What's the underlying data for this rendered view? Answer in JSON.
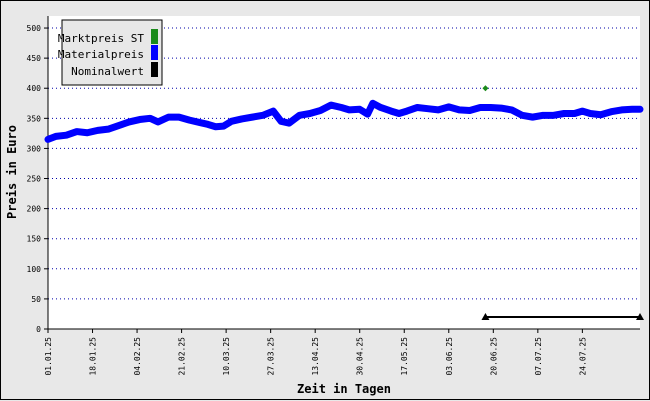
{
  "chart_data": {
    "type": "line",
    "xlabel": "Zeit in Tagen",
    "ylabel": "Preis in Euro",
    "ylim": [
      0,
      520
    ],
    "y_ticks": [
      0,
      50,
      100,
      150,
      200,
      250,
      300,
      350,
      400,
      450,
      500
    ],
    "x_range": [
      "01.01.25",
      "15.08.25"
    ],
    "x_ticks": [
      "01.01.25",
      "18.01.25",
      "04.02.25",
      "21.02.25",
      "10.03.25",
      "27.03.25",
      "13.04.25",
      "30.04.25",
      "17.05.25",
      "03.06.25",
      "20.06.25",
      "07.07.25",
      "24.07.25"
    ],
    "grid": "horizontal dotted",
    "legend_position": "top-left",
    "colors": {
      "Marktpreis ST": "#1a8a1a",
      "Materialpreis": "#0000ff",
      "Nominalwert": "#000000"
    },
    "series": [
      {
        "name": "Materialpreis",
        "type": "line",
        "x": [
          "01.01.25",
          "04.01.25",
          "08.01.25",
          "12.01.25",
          "16.01.25",
          "20.01.25",
          "24.01.25",
          "28.01.25",
          "01.02.25",
          "05.02.25",
          "09.02.25",
          "12.02.25",
          "16.02.25",
          "20.02.25",
          "24.02.25",
          "28.02.25",
          "03.03.25",
          "06.03.25",
          "09.03.25",
          "12.03.25",
          "16.03.25",
          "20.03.25",
          "24.03.25",
          "28.03.25",
          "31.03.25",
          "03.04.25",
          "07.04.25",
          "11.04.25",
          "15.04.25",
          "19.04.25",
          "23.04.25",
          "26.04.25",
          "30.04.25",
          "03.05.25",
          "05.05.25",
          "08.05.25",
          "12.05.25",
          "15.05.25",
          "18.05.25",
          "22.05.25",
          "26.05.25",
          "30.05.25",
          "03.06.25",
          "07.06.25",
          "11.06.25",
          "15.06.25",
          "19.06.25",
          "23.06.25",
          "27.06.25",
          "01.07.25",
          "05.07.25",
          "09.07.25",
          "13.07.25",
          "17.07.25",
          "21.07.25",
          "24.07.25",
          "27.07.25",
          "31.07.25",
          "04.08.25",
          "08.08.25",
          "12.08.25",
          "15.08.25"
        ],
        "values": [
          315,
          320,
          322,
          328,
          326,
          330,
          332,
          338,
          344,
          348,
          350,
          344,
          352,
          352,
          347,
          343,
          340,
          336,
          337,
          345,
          349,
          352,
          355,
          362,
          345,
          342,
          355,
          358,
          363,
          372,
          368,
          364,
          365,
          357,
          375,
          368,
          362,
          358,
          362,
          368,
          366,
          364,
          369,
          364,
          363,
          368,
          368,
          367,
          364,
          355,
          352,
          355,
          355,
          358,
          358,
          362,
          358,
          356,
          361,
          364,
          365,
          365
        ]
      },
      {
        "name": "Marktpreis ST",
        "type": "scatter",
        "x": [
          "17.06.25"
        ],
        "values": [
          400
        ]
      },
      {
        "name": "Nominalwert",
        "type": "line",
        "x": [
          "17.06.25",
          "15.08.25"
        ],
        "values": [
          20,
          20
        ]
      }
    ]
  }
}
